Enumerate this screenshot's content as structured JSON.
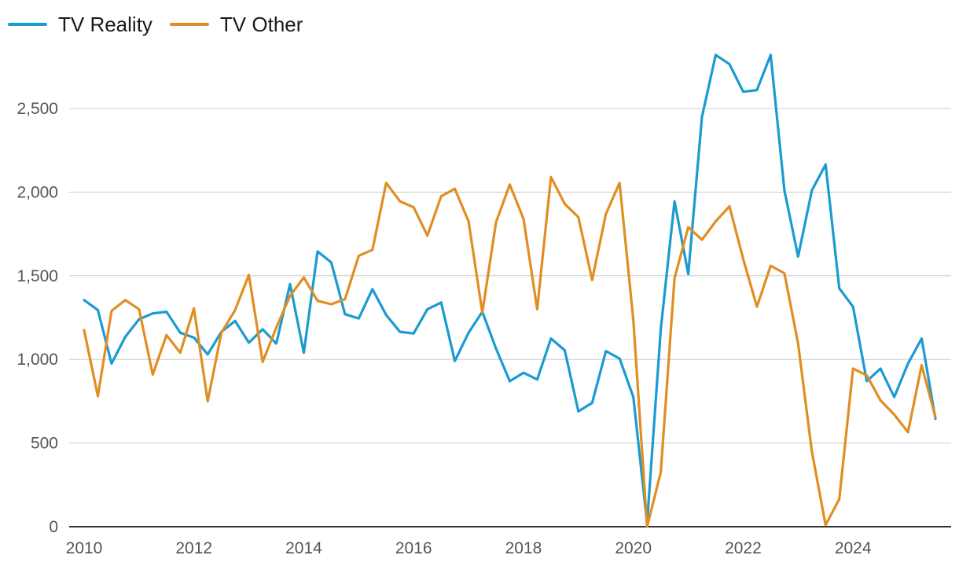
{
  "chart_data": {
    "type": "line",
    "title": "",
    "xlabel": "",
    "ylabel": "",
    "xlim": [
      2010,
      2025.5
    ],
    "ylim": [
      0,
      2800
    ],
    "y_ticks": [
      0,
      500,
      1000,
      1500,
      2000,
      2500
    ],
    "y_tick_labels": [
      "0",
      "500",
      "1,000",
      "1,500",
      "2,000",
      "2,500"
    ],
    "x_ticks": [
      2010,
      2012,
      2014,
      2016,
      2018,
      2020,
      2022,
      2024
    ],
    "x_tick_labels": [
      "2010",
      "2012",
      "2014",
      "2016",
      "2018",
      "2020",
      "2022",
      "2024"
    ],
    "grid": "horizontal",
    "legend": "top-left",
    "x": [
      2010.0,
      2010.25,
      2010.5,
      2010.75,
      2011.0,
      2011.25,
      2011.5,
      2011.75,
      2012.0,
      2012.25,
      2012.5,
      2012.75,
      2013.0,
      2013.25,
      2013.5,
      2013.75,
      2014.0,
      2014.25,
      2014.5,
      2014.75,
      2015.0,
      2015.25,
      2015.5,
      2015.75,
      2016.0,
      2016.25,
      2016.5,
      2016.75,
      2017.0,
      2017.25,
      2017.5,
      2017.75,
      2018.0,
      2018.25,
      2018.5,
      2018.75,
      2019.0,
      2019.25,
      2019.5,
      2019.75,
      2020.0,
      2020.25,
      2020.5,
      2020.75,
      2021.0,
      2021.25,
      2021.5,
      2021.75,
      2022.0,
      2022.25,
      2022.5,
      2022.75,
      2023.0,
      2023.25,
      2023.5,
      2023.75,
      2024.0,
      2024.25,
      2024.5,
      2024.75,
      2025.0,
      2025.25,
      2025.5
    ],
    "series": [
      {
        "name": "TV Reality",
        "color": "#1a9bd1",
        "values": [
          1355,
          1295,
          975,
          1135,
          1240,
          1275,
          1285,
          1160,
          1130,
          1030,
          1165,
          1230,
          1100,
          1180,
          1095,
          1450,
          1040,
          1645,
          1580,
          1270,
          1245,
          1420,
          1265,
          1165,
          1155,
          1300,
          1340,
          990,
          1160,
          1285,
          1065,
          870,
          920,
          880,
          1125,
          1055,
          690,
          740,
          1050,
          1005,
          775,
          20,
          1180,
          1945,
          1510,
          2450,
          2820,
          2765,
          2600,
          2610,
          2820,
          2010,
          1615,
          2010,
          2165,
          1425,
          1315,
          870,
          945,
          775,
          975,
          1125,
          645
        ]
      },
      {
        "name": "TV Other",
        "color": "#e08e23",
        "values": [
          1175,
          780,
          1290,
          1355,
          1300,
          910,
          1145,
          1040,
          1305,
          750,
          1160,
          1295,
          1505,
          985,
          1190,
          1380,
          1490,
          1350,
          1330,
          1360,
          1620,
          1655,
          2055,
          1945,
          1910,
          1740,
          1975,
          2020,
          1825,
          1280,
          1820,
          2045,
          1840,
          1300,
          2090,
          1930,
          1850,
          1475,
          1870,
          2055,
          1235,
          0,
          325,
          1485,
          1790,
          1715,
          1825,
          1915,
          1600,
          1315,
          1560,
          1515,
          1095,
          450,
          10,
          165,
          945,
          905,
          755,
          670,
          565,
          965,
          655
        ]
      }
    ]
  }
}
